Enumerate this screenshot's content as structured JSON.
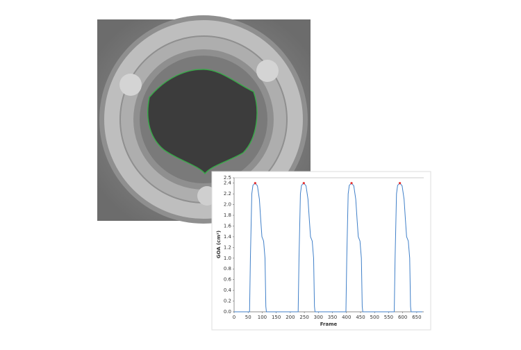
{
  "chart_data": {
    "type": "line",
    "y_label": "GOA (cm²)",
    "x_label": "Frame",
    "xlim": [
      0,
      675
    ],
    "xticks": [
      0,
      50,
      100,
      150,
      200,
      250,
      300,
      350,
      400,
      450,
      500,
      550,
      600,
      650
    ],
    "ylim": [
      0,
      2.5
    ],
    "yticks": [
      {
        "value": 0,
        "label": "0.0"
      },
      0.2,
      0.4,
      0.6,
      0.8,
      {
        "value": 1,
        "label": "1.0"
      },
      1.2,
      1.4,
      1.6,
      1.8,
      {
        "value": 2,
        "label": "2.0"
      },
      2.2,
      2.4,
      2.5
    ],
    "grid": false,
    "series": [
      {
        "color": "#3f7fc8",
        "x": [
          0,
          55,
          58,
          63,
          67,
          75,
          83,
          90,
          95,
          99,
          105,
          110,
          113,
          115,
          228,
          231,
          236,
          240,
          248,
          256,
          263,
          268,
          272,
          278,
          283,
          286,
          288,
          398,
          401,
          406,
          410,
          418,
          426,
          433,
          438,
          442,
          448,
          453,
          456,
          458,
          570,
          573,
          578,
          582,
          590,
          598,
          605,
          610,
          614,
          620,
          625,
          628,
          630,
          670
        ],
        "values": [
          0,
          0,
          1.0,
          2.2,
          2.36,
          2.4,
          2.35,
          2.1,
          1.7,
          1.4,
          1.32,
          1.0,
          0.1,
          0,
          0,
          1.0,
          2.2,
          2.36,
          2.4,
          2.35,
          2.1,
          1.7,
          1.4,
          1.32,
          1.0,
          0.1,
          0,
          0,
          1.0,
          2.2,
          2.36,
          2.4,
          2.35,
          2.1,
          1.7,
          1.4,
          1.32,
          1.0,
          0.1,
          0,
          0,
          1.0,
          2.2,
          2.36,
          2.4,
          2.35,
          2.1,
          1.7,
          1.4,
          1.32,
          1.0,
          0.1,
          0,
          0
        ]
      },
      {
        "type": "scatter",
        "color": "#e53030",
        "x": [
          75,
          248,
          418,
          590
        ],
        "values": [
          2.4,
          2.4,
          2.4,
          2.4
        ]
      }
    ]
  }
}
